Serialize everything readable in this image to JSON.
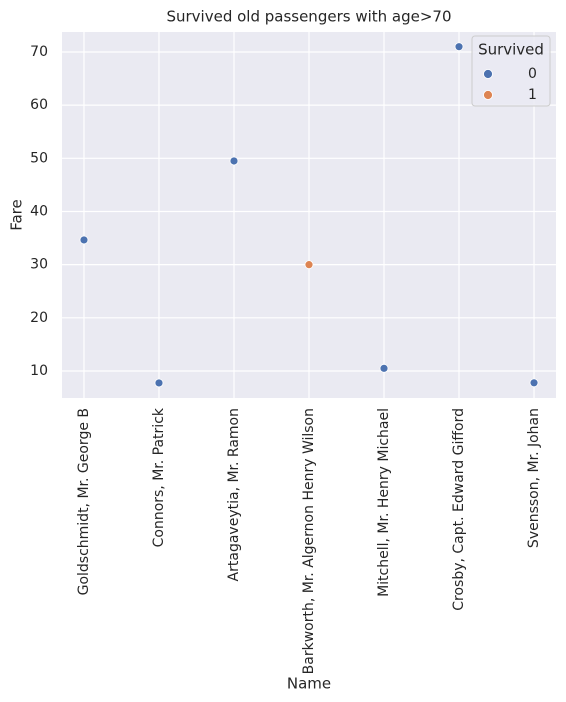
{
  "chart_data": {
    "type": "scatter",
    "title": "Survived old passengers with age>70",
    "x_label": "Name",
    "y_label": "Fare",
    "categories": [
      "Goldschmidt, Mr. George B",
      "Connors, Mr. Patrick",
      "Artagaveytia, Mr. Ramon",
      "Barkworth, Mr. Algernon Henry Wilson",
      "Mitchell, Mr. Henry Michael",
      "Crosby, Capt. Edward Gifford",
      "Svensson, Mr. Johan"
    ],
    "legend_title": "Survived",
    "legend": "upper right",
    "series": [
      {
        "name": "0",
        "color": "#4c72b0",
        "values": [
          34.65,
          7.75,
          49.5,
          null,
          10.5,
          71.0,
          7.78
        ]
      },
      {
        "name": "1",
        "color": "#dd8452",
        "values": [
          null,
          null,
          null,
          30.0,
          null,
          null,
          null
        ]
      }
    ],
    "ylim": [
      4.92,
      73.76
    ],
    "yticks": [
      10,
      20,
      30,
      40,
      50,
      60,
      70
    ],
    "grid": true
  }
}
